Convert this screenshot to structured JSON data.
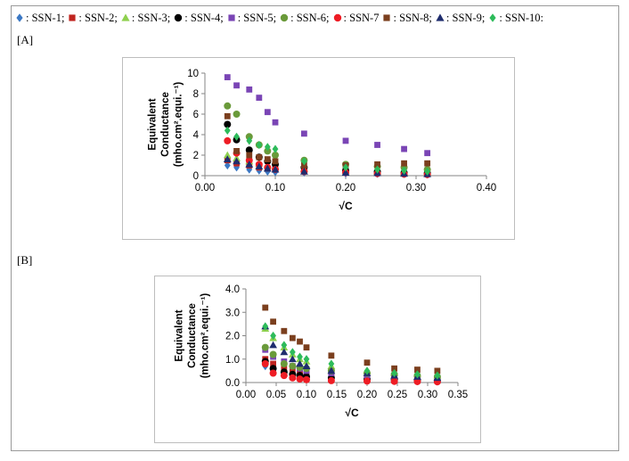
{
  "legend": [
    {
      "name": "SSN-1",
      "text": ": SSN-1;",
      "marker": "diamond",
      "color": "#3b78c4"
    },
    {
      "name": "SSN-2",
      "text": ": SSN-2;",
      "marker": "square",
      "color": "#c0241f"
    },
    {
      "name": "SSN-3",
      "text": ": SSN-3;",
      "marker": "triangle",
      "color": "#8fd14f"
    },
    {
      "name": "SSN-4",
      "text": ": SSN-4;",
      "marker": "circle",
      "color": "#000000"
    },
    {
      "name": "SSN-5",
      "text": ": SSN-5;",
      "marker": "square",
      "color": "#7a45b5"
    },
    {
      "name": "SSN-6",
      "text": ": SSN-6;",
      "marker": "circle",
      "color": "#6a9a3a"
    },
    {
      "name": "SSN-7",
      "text": ": SSN-7",
      "marker": "circle",
      "color": "#ee1c24"
    },
    {
      "name": "SSN-8",
      "text": ": SSN-8;",
      "marker": "square",
      "color": "#7b3f1e"
    },
    {
      "name": "SSN-9",
      "text": ": SSN-9;",
      "marker": "triangle",
      "color": "#1f2d6e"
    },
    {
      "name": "SSN-10",
      "text": ": SSN-10:",
      "marker": "diamond",
      "color": "#2dbb5a"
    }
  ],
  "panels": {
    "A": "[A]",
    "B": "[B]"
  },
  "chart_data": [
    {
      "id": "A",
      "type": "scatter",
      "title": "",
      "xlabel": "√C",
      "ylabel_line1": "Equivalent",
      "ylabel_line2": "Conductance",
      "ylabel_line3": "(mho.cm².equi.⁻¹)",
      "xlim": [
        0,
        0.4
      ],
      "ylim": [
        0,
        10
      ],
      "xticks": [
        0,
        0.1,
        0.2,
        0.3,
        0.4
      ],
      "xtick_labels": [
        "0.00",
        "0.10",
        "0.20",
        "0.30",
        "0.40"
      ],
      "yticks": [
        0,
        2,
        4,
        6,
        8,
        10
      ],
      "ytick_labels": [
        "0",
        "2",
        "4",
        "6",
        "8",
        "10"
      ],
      "x": [
        0.032,
        0.045,
        0.063,
        0.077,
        0.089,
        0.1,
        0.141,
        0.2,
        0.245,
        0.283,
        0.316
      ],
      "series": [
        {
          "name": "SSN-1",
          "values": [
            1.0,
            0.8,
            0.6,
            0.5,
            0.4,
            0.35,
            0.3,
            0.2,
            0.18,
            0.15,
            0.12
          ]
        },
        {
          "name": "SSN-2",
          "values": [
            1.5,
            1.2,
            1.0,
            0.8,
            0.7,
            0.6,
            0.5,
            0.4,
            0.3,
            0.25,
            0.2
          ]
        },
        {
          "name": "SSN-3",
          "values": [
            2.0,
            1.7,
            1.4,
            1.2,
            1.0,
            0.9,
            0.7,
            0.5,
            0.4,
            0.35,
            0.3
          ]
        },
        {
          "name": "SSN-4",
          "values": [
            5.0,
            3.5,
            2.5,
            1.8,
            1.4,
            1.1,
            0.8,
            0.5,
            0.4,
            0.3,
            0.25
          ]
        },
        {
          "name": "SSN-5",
          "values": [
            9.6,
            8.8,
            8.4,
            7.6,
            6.2,
            5.2,
            4.1,
            3.4,
            3.0,
            2.6,
            2.2
          ]
        },
        {
          "name": "SSN-6",
          "values": [
            6.8,
            6.0,
            3.8,
            3.0,
            2.4,
            2.0,
            1.5,
            1.1,
            0.9,
            0.8,
            0.6
          ]
        },
        {
          "name": "SSN-7",
          "values": [
            3.4,
            2.2,
            1.5,
            1.1,
            0.8,
            0.6,
            0.4,
            0.3,
            0.2,
            0.15,
            0.1
          ]
        },
        {
          "name": "SSN-8",
          "values": [
            5.8,
            2.4,
            2.0,
            1.8,
            1.6,
            1.4,
            1.0,
            1.0,
            1.1,
            1.2,
            1.2
          ]
        },
        {
          "name": "SSN-9",
          "values": [
            1.6,
            1.4,
            1.1,
            0.9,
            0.7,
            0.6,
            0.4,
            0.3,
            0.25,
            0.2,
            0.15
          ]
        },
        {
          "name": "SSN-10",
          "values": [
            4.4,
            3.8,
            3.4,
            3.0,
            2.8,
            2.6,
            1.4,
            0.8,
            0.6,
            0.5,
            0.4
          ]
        }
      ]
    },
    {
      "id": "B",
      "type": "scatter",
      "title": "",
      "xlabel": "√C",
      "ylabel_line1": "Equivalent",
      "ylabel_line2": "Conductance",
      "ylabel_line3": "(mho.cm².equi.⁻¹)",
      "xlim": [
        0,
        0.35
      ],
      "ylim": [
        0,
        4
      ],
      "xticks": [
        0,
        0.05,
        0.1,
        0.15,
        0.2,
        0.25,
        0.3,
        0.35
      ],
      "xtick_labels": [
        "0.00",
        "0.05",
        "0.10",
        "0.15",
        "0.20",
        "0.25",
        "0.30",
        "0.35"
      ],
      "yticks": [
        0,
        1,
        2,
        3,
        4
      ],
      "ytick_labels": [
        "0.0",
        "1.0",
        "2.0",
        "3.0",
        "4.0"
      ],
      "x": [
        0.032,
        0.045,
        0.063,
        0.077,
        0.089,
        0.1,
        0.141,
        0.2,
        0.245,
        0.283,
        0.316
      ],
      "series": [
        {
          "name": "SSN-1",
          "values": [
            0.7,
            0.5,
            0.4,
            0.3,
            0.25,
            0.2,
            0.15,
            0.1,
            0.08,
            0.06,
            0.05
          ]
        },
        {
          "name": "SSN-2",
          "values": [
            1.0,
            0.8,
            0.6,
            0.5,
            0.4,
            0.35,
            0.3,
            0.2,
            0.15,
            0.12,
            0.1
          ]
        },
        {
          "name": "SSN-3",
          "values": [
            2.3,
            1.9,
            1.5,
            1.2,
            1.0,
            0.9,
            0.7,
            0.5,
            0.4,
            0.35,
            0.3
          ]
        },
        {
          "name": "SSN-4",
          "values": [
            0.9,
            0.6,
            0.45,
            0.35,
            0.3,
            0.25,
            0.2,
            0.15,
            0.12,
            0.1,
            0.08
          ]
        },
        {
          "name": "SSN-5",
          "values": [
            1.4,
            1.1,
            0.9,
            0.7,
            0.6,
            0.5,
            0.4,
            0.3,
            0.25,
            0.2,
            0.18
          ]
        },
        {
          "name": "SSN-6",
          "values": [
            1.5,
            1.2,
            0.8,
            0.7,
            0.65,
            0.6,
            0.5,
            0.4,
            0.35,
            0.3,
            0.25
          ]
        },
        {
          "name": "SSN-7",
          "values": [
            0.8,
            0.4,
            0.3,
            0.2,
            0.15,
            0.12,
            0.08,
            0.06,
            0.05,
            0.04,
            0.03
          ]
        },
        {
          "name": "SSN-8",
          "values": [
            3.2,
            2.6,
            2.2,
            1.9,
            1.75,
            1.5,
            1.15,
            0.85,
            0.6,
            0.55,
            0.5
          ]
        },
        {
          "name": "SSN-9",
          "values": [
            2.4,
            1.6,
            1.3,
            1.0,
            0.8,
            0.7,
            0.5,
            0.4,
            0.3,
            0.25,
            0.2
          ]
        },
        {
          "name": "SSN-10",
          "values": [
            2.4,
            2.0,
            1.6,
            1.3,
            1.1,
            1.0,
            0.8,
            0.5,
            0.4,
            0.35,
            0.3
          ]
        }
      ]
    }
  ]
}
